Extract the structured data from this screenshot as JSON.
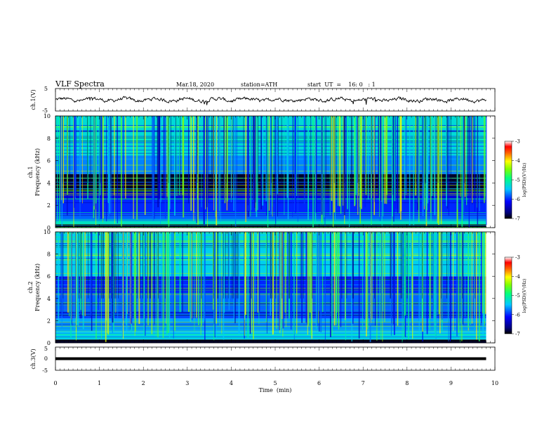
{
  "header": {
    "title": "VLF  Spectra",
    "date": "Mar.18, 2020",
    "station": "station=ATH",
    "start": "start  UT  =    16: 0   : 1"
  },
  "chart_data": [
    {
      "type": "line",
      "panel": "ch1-waveform",
      "ylabel": "ch.1(V)",
      "xlim": [
        0,
        10
      ],
      "ylim": [
        -5,
        5
      ],
      "yticks": [
        "5",
        "-5"
      ],
      "line_color": "#000000",
      "description_value_level": 0,
      "x_end": 9.8
    },
    {
      "type": "heatmap",
      "panel": "ch1-spectrogram",
      "ylabel_line1": "ch.1",
      "ylabel_line2": "Frequency  (kHz)",
      "xlim": [
        0,
        10
      ],
      "ylim": [
        0,
        10
      ],
      "yticks": [
        "0",
        "2",
        "4",
        "6",
        "8",
        "10"
      ],
      "x_end": 9.8,
      "colorbar": {
        "min": -7,
        "max": -3,
        "ticks": [
          "-3",
          "-4",
          "-5",
          "-6",
          "-7"
        ],
        "label": "log(PSD)(V²/Hz)"
      },
      "bands_khz_log_psd": [
        {
          "from": 0,
          "to": 0.3,
          "value": -7
        },
        {
          "from": 0.3,
          "to": 0.6,
          "value": -5.2
        },
        {
          "from": 0.6,
          "to": 1.2,
          "value": -5.8
        },
        {
          "from": 1.2,
          "to": 2.6,
          "value": -6.0
        },
        {
          "from": 2.6,
          "to": 3.2,
          "value": -6.3
        },
        {
          "from": 3.2,
          "to": 4.8,
          "value": -6.9
        },
        {
          "from": 4.8,
          "to": 6.5,
          "value": -5.7
        },
        {
          "from": 6.5,
          "to": 10,
          "value": -5.3
        }
      ]
    },
    {
      "type": "heatmap",
      "panel": "ch2-spectrogram",
      "ylabel_line1": "ch.2",
      "ylabel_line2": "Frequency  (kHz)",
      "xlim": [
        0,
        10
      ],
      "ylim": [
        0,
        10
      ],
      "yticks": [
        "0",
        "2",
        "4",
        "6",
        "8",
        "10"
      ],
      "x_end": 9.8,
      "colorbar": {
        "min": -7,
        "max": -3,
        "ticks": [
          "-3",
          "-4",
          "-5",
          "-6",
          "-7"
        ],
        "label": "log(PSD)(V²/Hz)"
      },
      "bands_khz_log_psd": [
        {
          "from": 0,
          "to": 0.3,
          "value": -7
        },
        {
          "from": 0.3,
          "to": 1.0,
          "value": -5.4
        },
        {
          "from": 1.0,
          "to": 2.2,
          "value": -5.6
        },
        {
          "from": 2.2,
          "to": 3.0,
          "value": -5.9
        },
        {
          "from": 3.0,
          "to": 4.4,
          "value": -5.8
        },
        {
          "from": 4.4,
          "to": 6.0,
          "value": -6.0
        },
        {
          "from": 6.0,
          "to": 10,
          "value": -5.4
        }
      ]
    },
    {
      "type": "line",
      "panel": "ch3-waveform",
      "ylabel": "ch.3(V)",
      "xlim": [
        0,
        10
      ],
      "ylim": [
        -5,
        5
      ],
      "yticks": [
        "5",
        "0",
        "-5"
      ],
      "line_color": "#000000",
      "description_value_level": 0,
      "x_end": 9.8
    }
  ],
  "x_axis": {
    "label": "Time  (min)",
    "ticks": [
      "0",
      "1",
      "2",
      "3",
      "4",
      "5",
      "6",
      "7",
      "8",
      "9",
      "10"
    ]
  }
}
